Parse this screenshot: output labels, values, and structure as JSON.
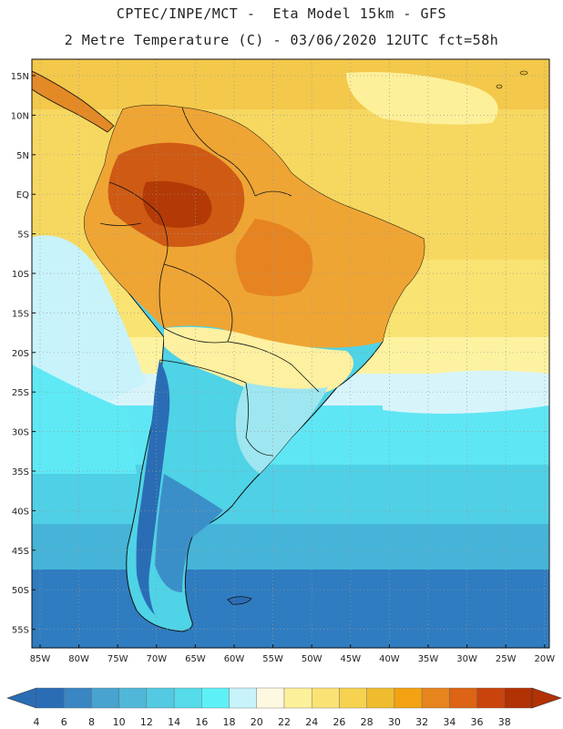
{
  "header": {
    "line1": "CPTEC/INPE/MCT -  Eta Model 15km - GFS",
    "line2": "2 Metre Temperature (C) - 03/06/2020 12UTC fct=58h"
  },
  "map": {
    "lat_labels": [
      "15N",
      "10N",
      "5N",
      "EQ",
      "5S",
      "10S",
      "15S",
      "20S",
      "25S",
      "30S",
      "35S",
      "40S",
      "45S",
      "50S",
      "55S"
    ],
    "lon_labels": [
      "85W",
      "80W",
      "75W",
      "70W",
      "65W",
      "60W",
      "55W",
      "50W",
      "45W",
      "40W",
      "35W",
      "30W",
      "25W",
      "20W"
    ]
  },
  "colorbar": {
    "labels": [
      "4",
      "6",
      "8",
      "10",
      "12",
      "14",
      "16",
      "18",
      "20",
      "22",
      "24",
      "26",
      "28",
      "30",
      "32",
      "34",
      "36",
      "38"
    ],
    "colors": [
      "#2a6db5",
      "#3a86c3",
      "#48a3cf",
      "#50b7d9",
      "#53c9e2",
      "#55dbea",
      "#5ef0f7",
      "#c8f3fb",
      "#fff8e0",
      "#fdf09a",
      "#fbe275",
      "#f7d250",
      "#efbc30",
      "#f2a212",
      "#e6841d",
      "#dd6416",
      "#c9440c",
      "#b13205"
    ]
  }
}
